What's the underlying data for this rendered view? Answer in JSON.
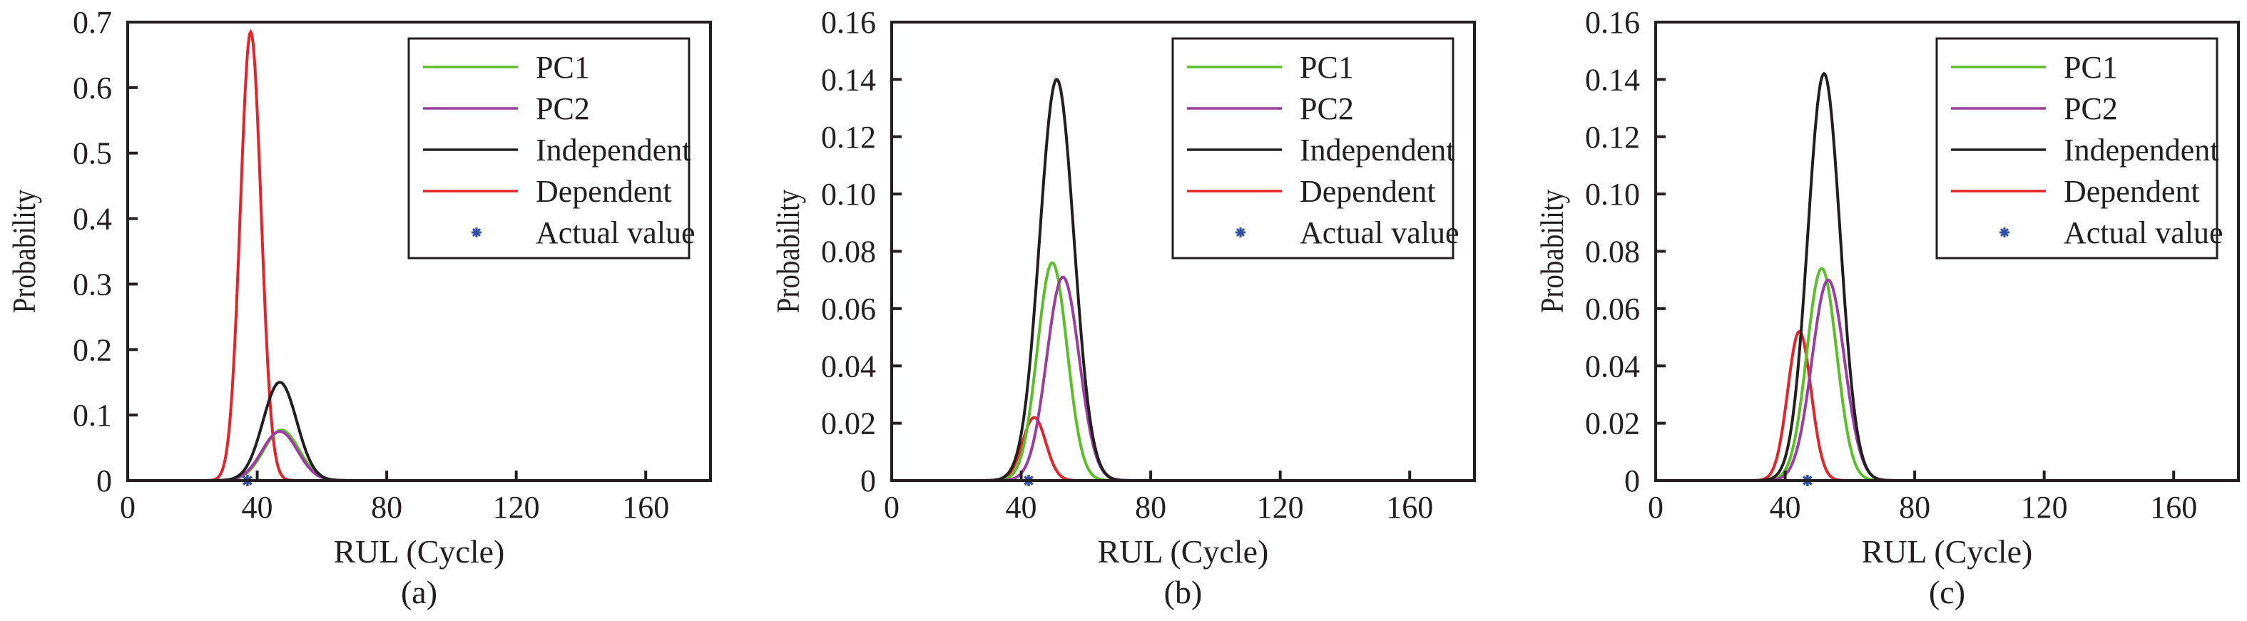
{
  "chart_data": [
    {
      "panel_label": "(a)",
      "type": "line",
      "xlabel": "RUL (Cycle)",
      "ylabel": "Probability",
      "xlim": [
        0,
        180
      ],
      "ylim": [
        0,
        0.7
      ],
      "xticks": [
        0,
        40,
        80,
        120,
        160
      ],
      "yticks": [
        0,
        0.1,
        0.2,
        0.3,
        0.4,
        0.5,
        0.6,
        0.7
      ],
      "ytick_labels": [
        "0",
        "0.1",
        "0.2",
        "0.3",
        "0.4",
        "0.5",
        "0.6",
        "0.7"
      ],
      "legend_position": "top-right",
      "series": [
        {
          "name": "PC1",
          "color": "#5cbf2a",
          "shape": "gaussian",
          "mean": 47.5,
          "sigma": 5.5,
          "peak": 0.077
        },
        {
          "name": "PC2",
          "color": "#9a3fa0",
          "shape": "gaussian",
          "mean": 47,
          "sigma": 5.5,
          "peak": 0.075
        },
        {
          "name": "Independent",
          "color": "#231f20",
          "shape": "gaussian",
          "mean": 47,
          "sigma": 5.2,
          "peak": 0.15
        },
        {
          "name": "Dependent",
          "color": "#e3242b",
          "shape": "gaussian",
          "mean": 38,
          "sigma": 3.2,
          "peak": 0.685
        }
      ],
      "actual_value": {
        "name": "Actual value",
        "color": "#2e4fa3",
        "x": 37,
        "y": 0
      }
    },
    {
      "panel_label": "(b)",
      "type": "line",
      "xlabel": "RUL (Cycle)",
      "ylabel": "Probability",
      "xlim": [
        0,
        180
      ],
      "ylim": [
        0,
        0.16
      ],
      "xticks": [
        0,
        40,
        80,
        120,
        160
      ],
      "yticks": [
        0,
        0.02,
        0.04,
        0.06,
        0.08,
        0.1,
        0.12,
        0.14,
        0.16
      ],
      "ytick_labels": [
        "0",
        "0.02",
        "0.04",
        "0.06",
        "0.08",
        "0.10",
        "0.12",
        "0.14",
        "0.16"
      ],
      "legend_position": "top-right",
      "series": [
        {
          "name": "PC1",
          "color": "#5cbf2a",
          "shape": "gaussian",
          "mean": 49.6,
          "sigma": 4.6,
          "peak": 0.076
        },
        {
          "name": "PC2",
          "color": "#9a3fa0",
          "shape": "gaussian",
          "mean": 52.9,
          "sigma": 5.0,
          "peak": 0.071
        },
        {
          "name": "Independent",
          "color": "#231f20",
          "shape": "gaussian",
          "mean": 51,
          "sigma": 5.3,
          "peak": 0.14
        },
        {
          "name": "Dependent",
          "color": "#e3242b",
          "shape": "gaussian",
          "mean": 44,
          "sigma": 3.6,
          "peak": 0.022
        }
      ],
      "actual_value": {
        "name": "Actual value",
        "color": "#2e4fa3",
        "x": 42.3,
        "y": 0
      }
    },
    {
      "panel_label": "(c)",
      "type": "line",
      "xlabel": "RUL (Cycle)",
      "ylabel": "Probability",
      "xlim": [
        0,
        180
      ],
      "ylim": [
        0,
        0.16
      ],
      "xticks": [
        0,
        40,
        80,
        120,
        160
      ],
      "yticks": [
        0,
        0.02,
        0.04,
        0.06,
        0.08,
        0.1,
        0.12,
        0.14,
        0.16
      ],
      "ytick_labels": [
        "0",
        "0.02",
        "0.04",
        "0.06",
        "0.08",
        "0.10",
        "0.12",
        "0.14",
        "0.16"
      ],
      "legend_position": "top-right",
      "series": [
        {
          "name": "PC1",
          "color": "#5cbf2a",
          "shape": "gaussian",
          "mean": 51.3,
          "sigma": 4.6,
          "peak": 0.074
        },
        {
          "name": "PC2",
          "color": "#9a3fa0",
          "shape": "gaussian",
          "mean": 53.3,
          "sigma": 5.0,
          "peak": 0.07
        },
        {
          "name": "Independent",
          "color": "#231f20",
          "shape": "gaussian",
          "mean": 52,
          "sigma": 5.0,
          "peak": 0.142
        },
        {
          "name": "Dependent",
          "color": "#e3242b",
          "shape": "gaussian",
          "mean": 44.4,
          "sigma": 3.6,
          "peak": 0.052
        }
      ],
      "actual_value": {
        "name": "Actual value",
        "color": "#2e4fa3",
        "x": 46.9,
        "y": 0
      }
    }
  ]
}
